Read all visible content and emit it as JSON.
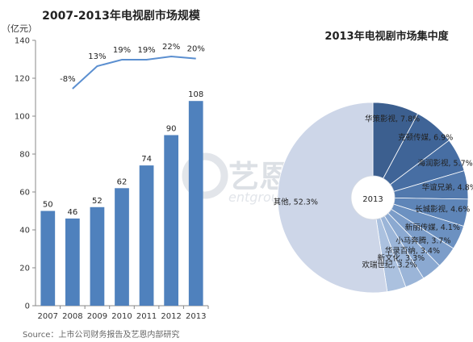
{
  "chart_data": [
    {
      "type": "bar",
      "title": "2007-2013年电视剧市场规模",
      "unit": "（亿元）",
      "categories": [
        "2007",
        "2008",
        "2009",
        "2010",
        "2011",
        "2012",
        "2013"
      ],
      "values": [
        50,
        46,
        52,
        62,
        74,
        90,
        108
      ],
      "ylim": [
        0,
        140
      ],
      "yticks": [
        0,
        20,
        40,
        60,
        80,
        100,
        120,
        140
      ],
      "grid": false,
      "colors": {
        "bar": "#4f81bd",
        "line": "#5b8fd0"
      },
      "growth_line": {
        "categories": [
          "2008",
          "2009",
          "2010",
          "2011",
          "2012",
          "2013"
        ],
        "labels": [
          "-8%",
          "13%",
          "19%",
          "19%",
          "22%",
          "20%"
        ],
        "values": [
          -8,
          13,
          19,
          19,
          22,
          20
        ]
      }
    },
    {
      "type": "pie",
      "title": "2013年电视剧市场集中度",
      "center_label": "2013",
      "slices": [
        {
          "label": "华策影视",
          "value": 7.8,
          "display": "华策影视, 7.8%",
          "color": "#3c5f8f"
        },
        {
          "label": "克顿传媒",
          "value": 6.9,
          "display": "克顿传媒, 6.9%",
          "color": "#3f6497"
        },
        {
          "label": "海润影视",
          "value": 5.7,
          "display": "海润影视, 5.7%",
          "color": "#476ea3"
        },
        {
          "label": "华谊兄弟",
          "value": 4.8,
          "display": "华谊兄弟, 4.8%",
          "color": "#5279ad"
        },
        {
          "label": "长城影视",
          "value": 4.6,
          "display": "长城影视, 4.6%",
          "color": "#5e85b8"
        },
        {
          "label": "新丽传媒",
          "value": 4.1,
          "display": "新丽传媒, 4.1%",
          "color": "#6c91c1"
        },
        {
          "label": "小马奔腾",
          "value": 3.7,
          "display": "小马奔腾, 3.7%",
          "color": "#7c9dc9"
        },
        {
          "label": "华录百纳",
          "value": 3.4,
          "display": "华录百纳, 3.4%",
          "color": "#8ba9d1"
        },
        {
          "label": "新文化",
          "value": 3.3,
          "display": "新文化, 3.3%",
          "color": "#9bb5d8"
        },
        {
          "label": "欢瑞世纪",
          "value": 3.2,
          "display": "欢瑞世纪, 3.2%",
          "color": "#abc1df"
        },
        {
          "label": "其他",
          "value": 52.3,
          "display": "其他, 52.3%",
          "color": "#cdd6e8"
        }
      ]
    }
  ],
  "source": "Source：上市公司财务报告及艺恩内部研究",
  "watermark": {
    "brand_cn": "艺恩",
    "brand_en": "entgroup"
  }
}
